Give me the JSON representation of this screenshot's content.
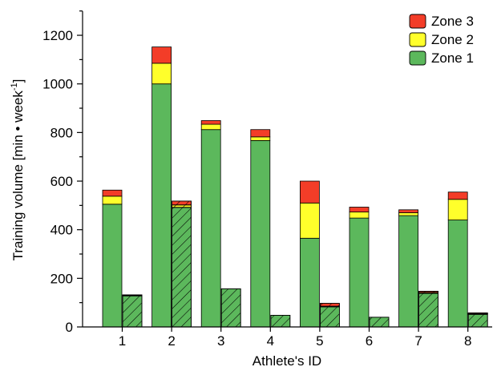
{
  "chart_data": {
    "type": "bar",
    "subtype": "stacked-grouped",
    "xlabel": "Athlete's ID",
    "ylabel_main": "Training volume [min • week",
    "ylabel_sup": "-1",
    "ylabel_end": "]",
    "ylim": [
      0,
      1300
    ],
    "yticks": [
      0,
      200,
      400,
      600,
      800,
      1000,
      1200
    ],
    "yminor": [
      100,
      300,
      500,
      700,
      900,
      1100,
      1300
    ],
    "grid": false,
    "legend_position": "top-right",
    "categories": [
      "1",
      "2",
      "3",
      "4",
      "5",
      "6",
      "7",
      "8"
    ],
    "legend": [
      {
        "name": "Zone 3",
        "color": "#f33d28"
      },
      {
        "name": "Zone 2",
        "color": "#ffff2b"
      },
      {
        "name": "Zone 1",
        "color": "#5cb85c"
      }
    ],
    "groups": [
      {
        "style": "solid",
        "series": [
          {
            "name": "Zone 1",
            "color": "#5cb85c",
            "values": [
              505,
              1000,
              812,
              767,
              365,
              448,
              458,
              440
            ]
          },
          {
            "name": "Zone 2",
            "color": "#ffff2b",
            "values": [
              33,
              85,
              22,
              15,
              145,
              25,
              12,
              85
            ]
          },
          {
            "name": "Zone 3",
            "color": "#f33d28",
            "values": [
              25,
              67,
              15,
              30,
              90,
              20,
              12,
              30
            ]
          }
        ]
      },
      {
        "style": "hatched",
        "series": [
          {
            "name": "Zone 1",
            "color": "#5cb85c",
            "values": [
              128,
              492,
              157,
              48,
              83,
              40,
              138,
              52
            ]
          },
          {
            "name": "Zone 2",
            "color": "#ffff2b",
            "values": [
              2,
              10,
              0,
              0,
              2,
              0,
              4,
              2
            ]
          },
          {
            "name": "Zone 3",
            "color": "#f33d28",
            "values": [
              2,
              16,
              0,
              0,
              12,
              0,
              5,
              4
            ]
          }
        ]
      }
    ]
  }
}
